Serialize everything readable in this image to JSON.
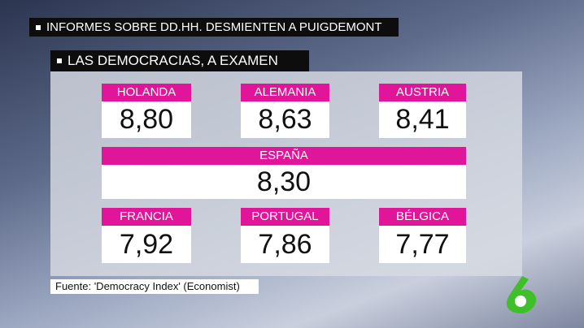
{
  "header": {
    "title": "INFORMES SOBRE DD.HH. DESMIENTEN A PUIGDEMONT",
    "subtitle": "LAS DEMOCRACIAS, A EXAMEN"
  },
  "cards": [
    {
      "label": "HOLANDA",
      "score": "8,80"
    },
    {
      "label": "ALEMANIA",
      "score": "8,63"
    },
    {
      "label": "AUSTRIA",
      "score": "8,41"
    },
    {
      "label": "ESPAÑA",
      "score": "8,30"
    },
    {
      "label": "FRANCIA",
      "score": "7,92"
    },
    {
      "label": "PORTUGAL",
      "score": "7,86"
    },
    {
      "label": "BÉLGICA",
      "score": "7,77"
    }
  ],
  "footer": {
    "source": "Fuente: 'Democracy Index' (Economist)"
  }
}
